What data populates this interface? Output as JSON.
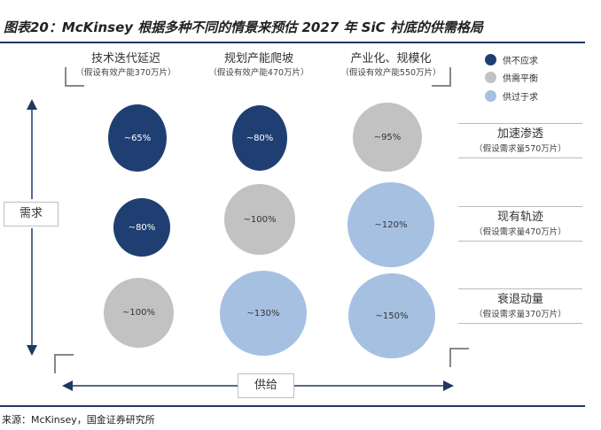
{
  "title": "图表20：McKinsey 根据多种不同的情景来预估 2027 年 SiC 衬底的供需格局",
  "source": "来源：McKinsey，国金证券研究所",
  "columns": [
    {
      "label": "技术迭代延迟",
      "note": "（假设有效产能370万片）"
    },
    {
      "label": "规划产能爬坡",
      "note": "（假设有效产能470万片）"
    },
    {
      "label": "产业化、规模化",
      "note": "（假设有效产能550万片）"
    }
  ],
  "rows": [
    {
      "label": "加速渗透",
      "note": "（假设需求量570万片）"
    },
    {
      "label": "现有轨迹",
      "note": "（假设需求量470万片）"
    },
    {
      "label": "衰退动量",
      "note": "（假设需求量370万片）"
    }
  ],
  "legend": [
    {
      "label": "供不应求",
      "color": "#1f3f73"
    },
    {
      "label": "供需平衡",
      "color": "#c2c2c2"
    },
    {
      "label": "供过于求",
      "color": "#a6c0e2"
    }
  ],
  "axes": {
    "y_label": "需求",
    "x_label": "供给"
  },
  "cells": [
    [
      {
        "value": "~65%",
        "status": "deficit"
      },
      {
        "value": "~80%",
        "status": "deficit"
      },
      {
        "value": "~95%",
        "status": "balance"
      }
    ],
    [
      {
        "value": "~80%",
        "status": "deficit"
      },
      {
        "value": "~100%",
        "status": "balance"
      },
      {
        "value": "~120%",
        "status": "surplus"
      }
    ],
    [
      {
        "value": "~100%",
        "status": "balance"
      },
      {
        "value": "~130%",
        "status": "surplus"
      },
      {
        "value": "~150%",
        "status": "surplus"
      }
    ]
  ]
}
